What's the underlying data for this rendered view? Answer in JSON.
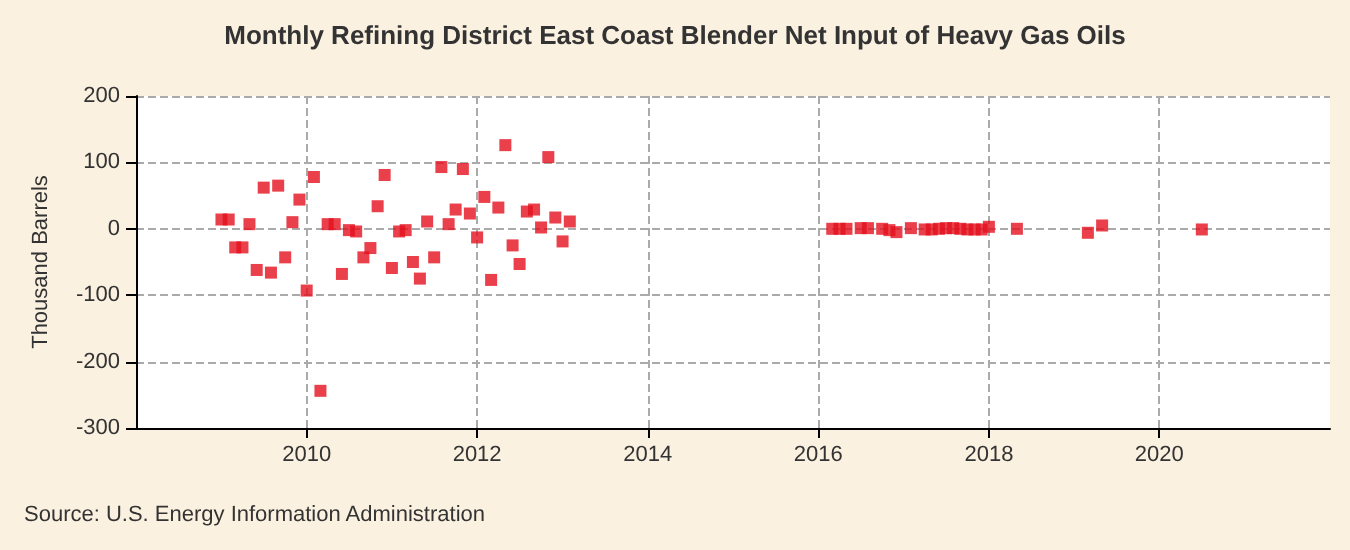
{
  "chart_data": {
    "type": "scatter",
    "title": "Monthly Refining District East Coast Blender Net Input of Heavy Gas Oils",
    "ylabel": "Thousand Barrels",
    "annotations": [
      "Source: U.S. Energy Information Administration"
    ],
    "x": [
      "2009-01",
      "2009-02",
      "2009-03",
      "2009-04",
      "2009-05",
      "2009-06",
      "2009-07",
      "2009-08",
      "2009-09",
      "2009-10",
      "2009-11",
      "2009-12",
      "2010-01",
      "2010-02",
      "2010-03",
      "2010-04",
      "2010-05",
      "2010-06",
      "2010-07",
      "2010-08",
      "2010-09",
      "2010-10",
      "2010-11",
      "2010-12",
      "2011-01",
      "2011-02",
      "2011-03",
      "2011-04",
      "2011-05",
      "2011-06",
      "2011-07",
      "2011-08",
      "2011-09",
      "2011-10",
      "2011-11",
      "2011-12",
      "2012-01",
      "2012-02",
      "2012-03",
      "2012-04",
      "2012-05",
      "2012-06",
      "2012-07",
      "2012-08",
      "2012-09",
      "2012-10",
      "2012-11",
      "2012-12",
      "2013-01",
      "2013-02",
      "2016-03",
      "2016-04",
      "2016-05",
      "2016-07",
      "2016-08",
      "2016-10",
      "2016-11",
      "2016-12",
      "2017-02",
      "2017-04",
      "2017-05",
      "2017-06",
      "2017-07",
      "2017-08",
      "2017-09",
      "2017-10",
      "2017-11",
      "2017-12",
      "2018-01",
      "2018-05",
      "2019-03",
      "2019-05",
      "2020-07"
    ],
    "series": [
      {
        "color": "#e3101e",
        "values": [
          14,
          14,
          -28,
          -28,
          7,
          -62,
          62,
          -66,
          65,
          -43,
          10,
          44,
          -93,
          78,
          -244,
          7,
          7,
          -68,
          -2,
          -4,
          -43,
          -29,
          34,
          81,
          -59,
          -4,
          -2,
          -50,
          -75,
          11,
          -43,
          93,
          7,
          29,
          90,
          23,
          -13,
          48,
          -77,
          32,
          126,
          -25,
          -53,
          26,
          29,
          2,
          108,
          17,
          -19,
          11,
          0,
          0,
          0,
          1,
          1,
          0,
          -2,
          -5,
          1,
          -1,
          -1,
          0,
          1,
          1,
          0,
          -1,
          -1,
          -1,
          3,
          0,
          -6,
          5,
          -1
        ]
      }
    ],
    "xlim": [
      "2008",
      "2022"
    ],
    "xticks": [
      "2010",
      "2012",
      "2014",
      "2016",
      "2018",
      "2020"
    ],
    "ylim": [
      -300,
      200
    ],
    "yticks": [
      -300,
      -200,
      -100,
      0,
      100,
      200
    ],
    "grid": true,
    "marker": "square"
  }
}
